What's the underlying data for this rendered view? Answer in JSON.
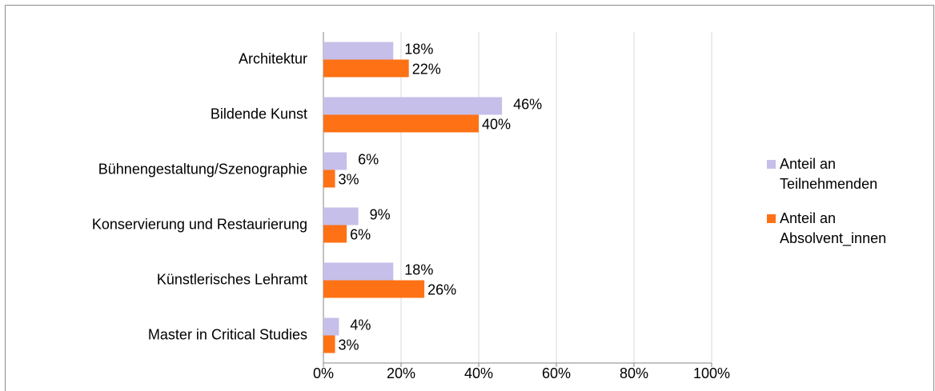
{
  "chart_data": {
    "type": "bar",
    "orientation": "horizontal",
    "categories": [
      "Architektur",
      "Bildende Kunst",
      "Bühnengestaltung/Szenographie",
      "Konservierung und Restaurierung",
      "Künstlerisches Lehramt",
      "Master in Critical Studies"
    ],
    "series": [
      {
        "name": "Anteil an Teilnehmenden",
        "color": "#c6bfe9",
        "values": [
          18,
          46,
          6,
          9,
          18,
          4
        ],
        "value_labels": [
          "18%",
          "46%",
          "6%",
          "9%",
          "18%",
          "4%"
        ]
      },
      {
        "name": "Anteil an Absolvent_innen",
        "color": "#ff7115",
        "values": [
          22,
          40,
          3,
          6,
          26,
          3
        ],
        "value_labels": [
          "22%",
          "40%",
          "3%",
          "6%",
          "26%",
          "3%"
        ]
      }
    ],
    "xlim": [
      0,
      100
    ],
    "xticks": [
      {
        "value": 0,
        "label": "0%"
      },
      {
        "value": 20,
        "label": "20%"
      },
      {
        "value": 40,
        "label": "40%"
      },
      {
        "value": 60,
        "label": "60%"
      },
      {
        "value": 80,
        "label": "80%"
      },
      {
        "value": 100,
        "label": "100%"
      }
    ],
    "grid": true,
    "legend": "right"
  }
}
